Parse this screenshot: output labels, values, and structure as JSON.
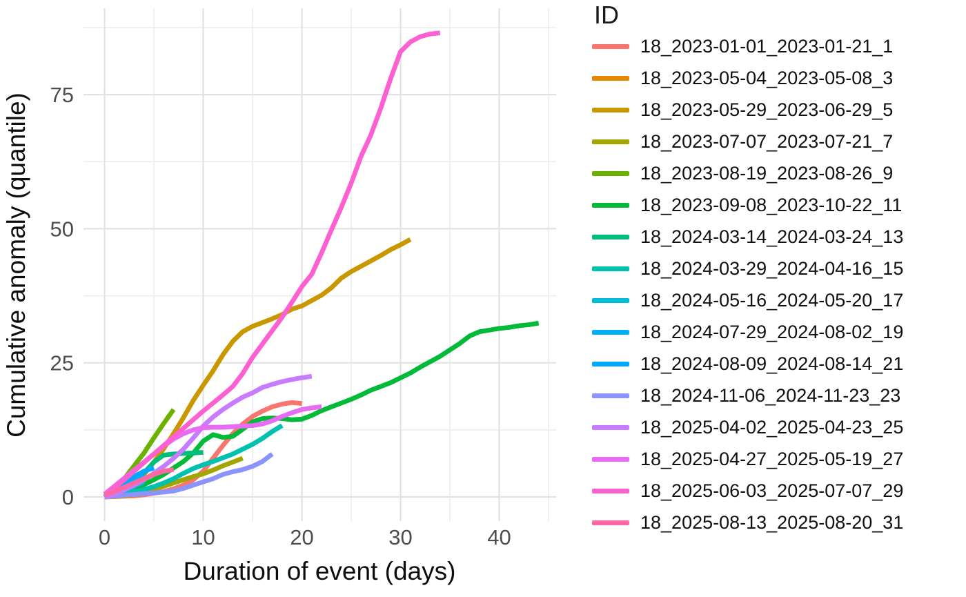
{
  "chart_data": {
    "type": "line",
    "title": "",
    "xlabel": "Duration of event (days)",
    "ylabel": "Cumulative anomaly (quantile)",
    "legend_title": "ID",
    "legend_position": "right",
    "grid": true,
    "x_ticks": [
      0,
      10,
      20,
      30,
      40
    ],
    "y_ticks": [
      0,
      25,
      50,
      75
    ],
    "x_minor_ticks": [
      5,
      15,
      25,
      35,
      45
    ],
    "y_minor_ticks": [
      12.5,
      37.5,
      62.5,
      87.5
    ],
    "xlim": [
      -2.2,
      46.2
    ],
    "ylim": [
      -4.5,
      91
    ],
    "axis_text_color": "#4d4d4d",
    "axis_title_color": "#0d0d0d",
    "grid_major_color": "#e2e2e2",
    "grid_minor_color": "#ededed",
    "series": [
      {
        "id": "18_2023-01-01_2023-01-21_1",
        "color": "#F8766D",
        "points": [
          [
            0,
            0
          ],
          [
            1,
            0.1
          ],
          [
            2,
            0.15
          ],
          [
            3,
            0.2
          ],
          [
            4,
            0.4
          ],
          [
            5,
            0.7
          ],
          [
            6,
            1
          ],
          [
            7,
            1.5
          ],
          [
            8,
            2.2
          ],
          [
            9,
            3.2
          ],
          [
            10,
            4.8
          ],
          [
            11,
            7.2
          ],
          [
            12,
            9.6
          ],
          [
            13,
            11.8
          ],
          [
            14,
            13.6
          ],
          [
            15,
            15
          ],
          [
            16,
            16
          ],
          [
            17,
            16.8
          ],
          [
            18,
            17.3
          ],
          [
            19,
            17.6
          ],
          [
            20,
            17.4
          ]
        ]
      },
      {
        "id": "18_2023-05-04_2023-05-08_3",
        "color": "#E58700",
        "points": [
          [
            0,
            0
          ],
          [
            1,
            0.05
          ],
          [
            2,
            0.15
          ],
          [
            3,
            0.3
          ],
          [
            4,
            0.6
          ]
        ]
      },
      {
        "id": "18_2023-05-29_2023-06-29_5",
        "color": "#C99800",
        "points": [
          [
            0,
            0
          ],
          [
            1,
            0.5
          ],
          [
            2,
            1.2
          ],
          [
            3,
            2.5
          ],
          [
            4,
            4.2
          ],
          [
            5,
            6.5
          ],
          [
            6,
            9
          ],
          [
            7,
            11.8
          ],
          [
            8,
            14.8
          ],
          [
            9,
            18
          ],
          [
            10,
            20.8
          ],
          [
            11,
            23.5
          ],
          [
            12,
            26.5
          ],
          [
            13,
            29
          ],
          [
            14,
            30.8
          ],
          [
            15,
            31.8
          ],
          [
            16,
            32.5
          ],
          [
            17,
            33.2
          ],
          [
            18,
            34
          ],
          [
            19,
            35
          ],
          [
            20,
            35.6
          ],
          [
            21,
            36.6
          ],
          [
            22,
            37.6
          ],
          [
            23,
            39
          ],
          [
            24,
            40.8
          ],
          [
            25,
            42
          ],
          [
            26,
            43
          ],
          [
            27,
            44
          ],
          [
            28,
            45
          ],
          [
            29,
            46.1
          ],
          [
            30,
            47
          ],
          [
            31,
            48
          ]
        ]
      },
      {
        "id": "18_2023-07-07_2023-07-21_7",
        "color": "#A3A500",
        "points": [
          [
            0,
            0
          ],
          [
            1,
            0.2
          ],
          [
            2,
            0.4
          ],
          [
            3,
            0.7
          ],
          [
            4,
            1
          ],
          [
            5,
            1.4
          ],
          [
            6,
            2
          ],
          [
            7,
            2.6
          ],
          [
            8,
            3.2
          ],
          [
            9,
            3.8
          ],
          [
            10,
            4.3
          ],
          [
            11,
            5
          ],
          [
            12,
            5.8
          ],
          [
            13,
            6.5
          ],
          [
            14,
            7.2
          ]
        ]
      },
      {
        "id": "18_2023-08-19_2023-08-26_9",
        "color": "#6BB100",
        "points": [
          [
            0,
            0
          ],
          [
            1,
            1.5
          ],
          [
            2,
            3.4
          ],
          [
            3,
            5.8
          ],
          [
            4,
            8.2
          ],
          [
            5,
            11
          ],
          [
            6,
            13.7
          ],
          [
            7,
            16.3
          ]
        ]
      },
      {
        "id": "18_2023-09-08_2023-10-22_11",
        "color": "#00BA38",
        "points": [
          [
            0,
            0
          ],
          [
            1,
            0.3
          ],
          [
            2,
            0.8
          ],
          [
            3,
            1.5
          ],
          [
            4,
            2.3
          ],
          [
            5,
            3.2
          ],
          [
            6,
            4.2
          ],
          [
            7,
            5.4
          ],
          [
            8,
            6.6
          ],
          [
            9,
            8.2
          ],
          [
            10,
            10.4
          ],
          [
            11,
            11.6
          ],
          [
            12,
            11.1
          ],
          [
            13,
            11.3
          ],
          [
            14,
            12.6
          ],
          [
            15,
            14
          ],
          [
            16,
            14.6
          ],
          [
            17,
            14.7
          ],
          [
            18,
            14.6
          ],
          [
            19,
            14.4
          ],
          [
            20,
            14.5
          ],
          [
            21,
            15.2
          ],
          [
            22,
            16.1
          ],
          [
            23,
            16.8
          ],
          [
            24,
            17.5
          ],
          [
            25,
            18.2
          ],
          [
            26,
            19
          ],
          [
            27,
            19.9
          ],
          [
            28,
            20.6
          ],
          [
            29,
            21.3
          ],
          [
            30,
            22.2
          ],
          [
            31,
            23.1
          ],
          [
            32,
            24.2
          ],
          [
            33,
            25.2
          ],
          [
            34,
            26.2
          ],
          [
            35,
            27.4
          ],
          [
            36,
            28.6
          ],
          [
            37,
            30
          ],
          [
            38,
            30.8
          ],
          [
            39,
            31.1
          ],
          [
            40,
            31.4
          ],
          [
            41,
            31.6
          ],
          [
            42,
            31.9
          ],
          [
            43,
            32.1
          ],
          [
            44,
            32.4
          ]
        ]
      },
      {
        "id": "18_2024-03-14_2024-03-24_13",
        "color": "#00BF7D",
        "points": [
          [
            0,
            0
          ],
          [
            1,
            0.5
          ],
          [
            2,
            1.2
          ],
          [
            3,
            2.5
          ],
          [
            4,
            4.5
          ],
          [
            5,
            6.5
          ],
          [
            6,
            7.8
          ],
          [
            7,
            8
          ],
          [
            8,
            8.1
          ],
          [
            9,
            8.2
          ],
          [
            10,
            8.3
          ]
        ]
      },
      {
        "id": "18_2024-03-29_2024-04-16_15",
        "color": "#00C0AF",
        "points": [
          [
            0,
            0
          ],
          [
            1,
            0.3
          ],
          [
            2,
            0.6
          ],
          [
            3,
            1
          ],
          [
            4,
            1.4
          ],
          [
            5,
            1.9
          ],
          [
            6,
            2.6
          ],
          [
            7,
            3.4
          ],
          [
            8,
            4.4
          ],
          [
            9,
            5.3
          ],
          [
            10,
            6
          ],
          [
            11,
            6.6
          ],
          [
            12,
            7.3
          ],
          [
            13,
            8
          ],
          [
            14,
            8.9
          ],
          [
            15,
            9.8
          ],
          [
            16,
            10.9
          ],
          [
            17,
            12.2
          ],
          [
            18,
            13.3
          ]
        ]
      },
      {
        "id": "18_2024-05-16_2024-05-20_17",
        "color": "#00BCD8",
        "points": [
          [
            0,
            0
          ],
          [
            1,
            0.5
          ],
          [
            2,
            1.2
          ],
          [
            3,
            2
          ],
          [
            4,
            2.8
          ]
        ]
      },
      {
        "id": "18_2024-07-29_2024-08-02_19",
        "color": "#00B0F6",
        "points": [
          [
            0,
            0
          ],
          [
            1,
            0.8
          ],
          [
            2,
            1.8
          ],
          [
            3,
            3
          ],
          [
            4,
            4.2
          ]
        ]
      },
      {
        "id": "18_2024-08-09_2024-08-14_21",
        "color": "#00A9FF",
        "points": [
          [
            0,
            0
          ],
          [
            1,
            1.2
          ],
          [
            2,
            2.6
          ],
          [
            3,
            3.8
          ],
          [
            4,
            4.8
          ],
          [
            5,
            5.4
          ]
        ]
      },
      {
        "id": "18_2024-11-06_2024-11-23_23",
        "color": "#8B93FF",
        "points": [
          [
            0,
            0
          ],
          [
            1,
            0.15
          ],
          [
            2,
            0.3
          ],
          [
            3,
            0.45
          ],
          [
            4,
            0.6
          ],
          [
            5,
            0.75
          ],
          [
            6,
            0.9
          ],
          [
            7,
            1.1
          ],
          [
            8,
            1.6
          ],
          [
            9,
            2.2
          ],
          [
            10,
            2.8
          ],
          [
            11,
            3.4
          ],
          [
            12,
            4.2
          ],
          [
            13,
            4.7
          ],
          [
            14,
            5.1
          ],
          [
            15,
            5.7
          ],
          [
            16,
            6.6
          ],
          [
            17,
            8
          ]
        ]
      },
      {
        "id": "18_2025-04-02_2025-04-23_25",
        "color": "#C77CFF",
        "points": [
          [
            0,
            0
          ],
          [
            1,
            0.5
          ],
          [
            2,
            1.3
          ],
          [
            3,
            2.2
          ],
          [
            4,
            3.2
          ],
          [
            5,
            4.4
          ],
          [
            6,
            5.7
          ],
          [
            7,
            7.2
          ],
          [
            8,
            8.9
          ],
          [
            9,
            11
          ],
          [
            10,
            13.2
          ],
          [
            11,
            14.9
          ],
          [
            12,
            16.3
          ],
          [
            13,
            17.5
          ],
          [
            14,
            18.6
          ],
          [
            15,
            19.4
          ],
          [
            16,
            20.4
          ],
          [
            17,
            21
          ],
          [
            18,
            21.5
          ],
          [
            19,
            21.9
          ],
          [
            20,
            22.2
          ],
          [
            21,
            22.5
          ]
        ]
      },
      {
        "id": "18_2025-04-27_2025-05-19_27",
        "color": "#E76BF3",
        "points": [
          [
            0,
            0.5
          ],
          [
            1,
            2
          ],
          [
            2,
            3.5
          ],
          [
            3,
            5
          ],
          [
            4,
            6.5
          ],
          [
            5,
            8
          ],
          [
            6,
            9.5
          ],
          [
            7,
            10.8
          ],
          [
            8,
            11.8
          ],
          [
            9,
            12.5
          ],
          [
            10,
            12.9
          ],
          [
            11,
            13
          ],
          [
            12,
            13
          ],
          [
            13,
            13.1
          ],
          [
            14,
            13.2
          ],
          [
            15,
            13.3
          ],
          [
            16,
            13.6
          ],
          [
            17,
            14.2
          ],
          [
            18,
            15
          ],
          [
            19,
            15.7
          ],
          [
            20,
            16.3
          ],
          [
            21,
            16.6
          ],
          [
            22,
            16.8
          ]
        ]
      },
      {
        "id": "18_2025-06-03_2025-07-07_29",
        "color": "#FD61D1",
        "points": [
          [
            0,
            0.5
          ],
          [
            1,
            1.7
          ],
          [
            2,
            3.2
          ],
          [
            3,
            4.8
          ],
          [
            4,
            6.4
          ],
          [
            5,
            8
          ],
          [
            6,
            9.6
          ],
          [
            7,
            11.2
          ],
          [
            8,
            12.8
          ],
          [
            9,
            14.4
          ],
          [
            10,
            16
          ],
          [
            11,
            17.5
          ],
          [
            12,
            19
          ],
          [
            13,
            20.6
          ],
          [
            14,
            23
          ],
          [
            15,
            26
          ],
          [
            16,
            28.5
          ],
          [
            17,
            31
          ],
          [
            18,
            33.5
          ],
          [
            19,
            36.3
          ],
          [
            20,
            39.2
          ],
          [
            21,
            41.5
          ],
          [
            22,
            45.5
          ],
          [
            23,
            49.8
          ],
          [
            24,
            54
          ],
          [
            25,
            58.5
          ],
          [
            26,
            63.5
          ],
          [
            27,
            67.5
          ],
          [
            28,
            72.5
          ],
          [
            29,
            78
          ],
          [
            30,
            83
          ],
          [
            31,
            84.8
          ],
          [
            32,
            85.8
          ],
          [
            33,
            86.3
          ],
          [
            34,
            86.5
          ]
        ]
      },
      {
        "id": "18_2025-08-13_2025-08-20_31",
        "color": "#FF67A4",
        "points": [
          [
            0,
            0.3
          ],
          [
            1,
            1
          ],
          [
            2,
            1.8
          ],
          [
            3,
            2.6
          ],
          [
            4,
            3.4
          ],
          [
            5,
            4.2
          ],
          [
            6,
            4.8
          ],
          [
            7,
            5.1
          ]
        ]
      }
    ]
  }
}
